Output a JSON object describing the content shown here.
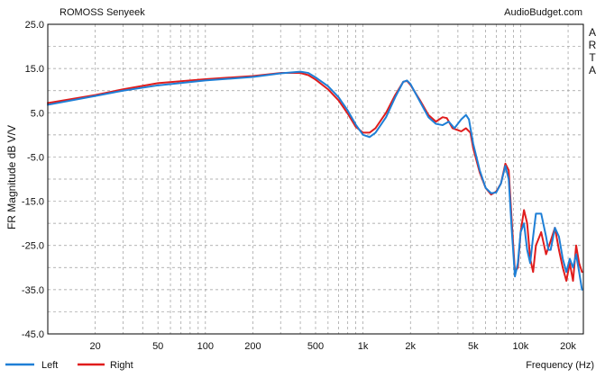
{
  "chart_data": {
    "type": "line",
    "title": "ROMOSS Senyeek",
    "watermark": "AudioBudget.com",
    "side_label": [
      "A",
      "R",
      "T",
      "A"
    ],
    "xlabel": "Frequency (Hz)",
    "ylabel": "FR Magnitude dB V/V",
    "x_scale": "log",
    "xlim": [
      10,
      25000
    ],
    "ylim": [
      -45,
      25
    ],
    "grid": true,
    "legend_position": "bottom-left",
    "x_ticks": [
      {
        "v": 20,
        "label": "20"
      },
      {
        "v": 50,
        "label": "50"
      },
      {
        "v": 100,
        "label": "100"
      },
      {
        "v": 200,
        "label": "200"
      },
      {
        "v": 500,
        "label": "500"
      },
      {
        "v": 1000,
        "label": "1k"
      },
      {
        "v": 2000,
        "label": "2k"
      },
      {
        "v": 5000,
        "label": "5k"
      },
      {
        "v": 10000,
        "label": "10k"
      },
      {
        "v": 20000,
        "label": "20k"
      }
    ],
    "y_ticks": [
      {
        "v": 25,
        "label": "25.0"
      },
      {
        "v": 15,
        "label": "15.0"
      },
      {
        "v": 5,
        "label": "5.0"
      },
      {
        "v": -5,
        "label": "-5.0"
      },
      {
        "v": -15,
        "label": "-15.0"
      },
      {
        "v": -25,
        "label": "-25.0"
      },
      {
        "v": -35,
        "label": "-35.0"
      },
      {
        "v": -45,
        "label": "-45.0"
      }
    ],
    "series": [
      {
        "name": "Left",
        "color": "#1e7fd6",
        "points": [
          [
            10,
            6.8
          ],
          [
            20,
            8.8
          ],
          [
            30,
            10
          ],
          [
            50,
            11.2
          ],
          [
            100,
            12.3
          ],
          [
            200,
            13.1
          ],
          [
            300,
            13.9
          ],
          [
            400,
            14.3
          ],
          [
            450,
            14
          ],
          [
            500,
            13
          ],
          [
            600,
            11
          ],
          [
            700,
            8.5
          ],
          [
            800,
            5.5
          ],
          [
            900,
            2.3
          ],
          [
            1000,
            0
          ],
          [
            1100,
            -0.5
          ],
          [
            1200,
            0.5
          ],
          [
            1400,
            4
          ],
          [
            1600,
            8.5
          ],
          [
            1800,
            12
          ],
          [
            1900,
            12.3
          ],
          [
            2000,
            11.5
          ],
          [
            2300,
            7.5
          ],
          [
            2600,
            4
          ],
          [
            2900,
            2.5
          ],
          [
            3200,
            2.2
          ],
          [
            3500,
            3
          ],
          [
            3800,
            1.5
          ],
          [
            4200,
            3.5
          ],
          [
            4500,
            4.5
          ],
          [
            4700,
            3.5
          ],
          [
            5000,
            -2
          ],
          [
            5500,
            -8
          ],
          [
            6000,
            -12
          ],
          [
            6500,
            -13.2
          ],
          [
            7000,
            -13
          ],
          [
            7500,
            -11
          ],
          [
            8000,
            -7
          ],
          [
            8400,
            -10
          ],
          [
            8800,
            -22
          ],
          [
            9200,
            -32
          ],
          [
            9600,
            -29
          ],
          [
            10000,
            -22
          ],
          [
            10500,
            -20
          ],
          [
            11000,
            -26
          ],
          [
            11500,
            -29
          ],
          [
            12000,
            -23
          ],
          [
            12500,
            -17.8
          ],
          [
            13500,
            -17.8
          ],
          [
            14500,
            -23
          ],
          [
            15000,
            -26
          ],
          [
            15500,
            -26
          ],
          [
            16500,
            -21
          ],
          [
            17500,
            -23
          ],
          [
            18500,
            -28
          ],
          [
            19500,
            -31
          ],
          [
            20500,
            -28
          ],
          [
            21500,
            -30
          ],
          [
            22500,
            -27
          ],
          [
            23500,
            -31
          ],
          [
            24500,
            -35
          ]
        ]
      },
      {
        "name": "Right",
        "color": "#e01c1c",
        "points": [
          [
            10,
            7.2
          ],
          [
            20,
            9
          ],
          [
            30,
            10.3
          ],
          [
            50,
            11.7
          ],
          [
            100,
            12.6
          ],
          [
            200,
            13.3
          ],
          [
            300,
            14
          ],
          [
            400,
            14
          ],
          [
            450,
            13.5
          ],
          [
            500,
            12.5
          ],
          [
            600,
            10.3
          ],
          [
            700,
            7.8
          ],
          [
            800,
            4.8
          ],
          [
            900,
            1.8
          ],
          [
            1000,
            0.5
          ],
          [
            1100,
            0.5
          ],
          [
            1200,
            1.5
          ],
          [
            1400,
            5
          ],
          [
            1600,
            9
          ],
          [
            1800,
            12
          ],
          [
            1900,
            12.2
          ],
          [
            2000,
            11.3
          ],
          [
            2300,
            7.8
          ],
          [
            2600,
            4.5
          ],
          [
            2900,
            3
          ],
          [
            3200,
            4
          ],
          [
            3400,
            3.8
          ],
          [
            3700,
            1.5
          ],
          [
            4200,
            0.8
          ],
          [
            4500,
            1.5
          ],
          [
            4800,
            0.5
          ],
          [
            5000,
            -3
          ],
          [
            5500,
            -8.5
          ],
          [
            6000,
            -12
          ],
          [
            6500,
            -13.5
          ],
          [
            7000,
            -12.8
          ],
          [
            7500,
            -11
          ],
          [
            8000,
            -6.5
          ],
          [
            8400,
            -8
          ],
          [
            8800,
            -20
          ],
          [
            9200,
            -31
          ],
          [
            9600,
            -30
          ],
          [
            10000,
            -22
          ],
          [
            10500,
            -17
          ],
          [
            11000,
            -20
          ],
          [
            11500,
            -28
          ],
          [
            12000,
            -31
          ],
          [
            12500,
            -25
          ],
          [
            13500,
            -22
          ],
          [
            14500,
            -27
          ],
          [
            15500,
            -24
          ],
          [
            16500,
            -21
          ],
          [
            17500,
            -26
          ],
          [
            18500,
            -30
          ],
          [
            19500,
            -33
          ],
          [
            20500,
            -29
          ],
          [
            21500,
            -33
          ],
          [
            22500,
            -25
          ],
          [
            23500,
            -29
          ],
          [
            24500,
            -31
          ]
        ]
      }
    ]
  }
}
